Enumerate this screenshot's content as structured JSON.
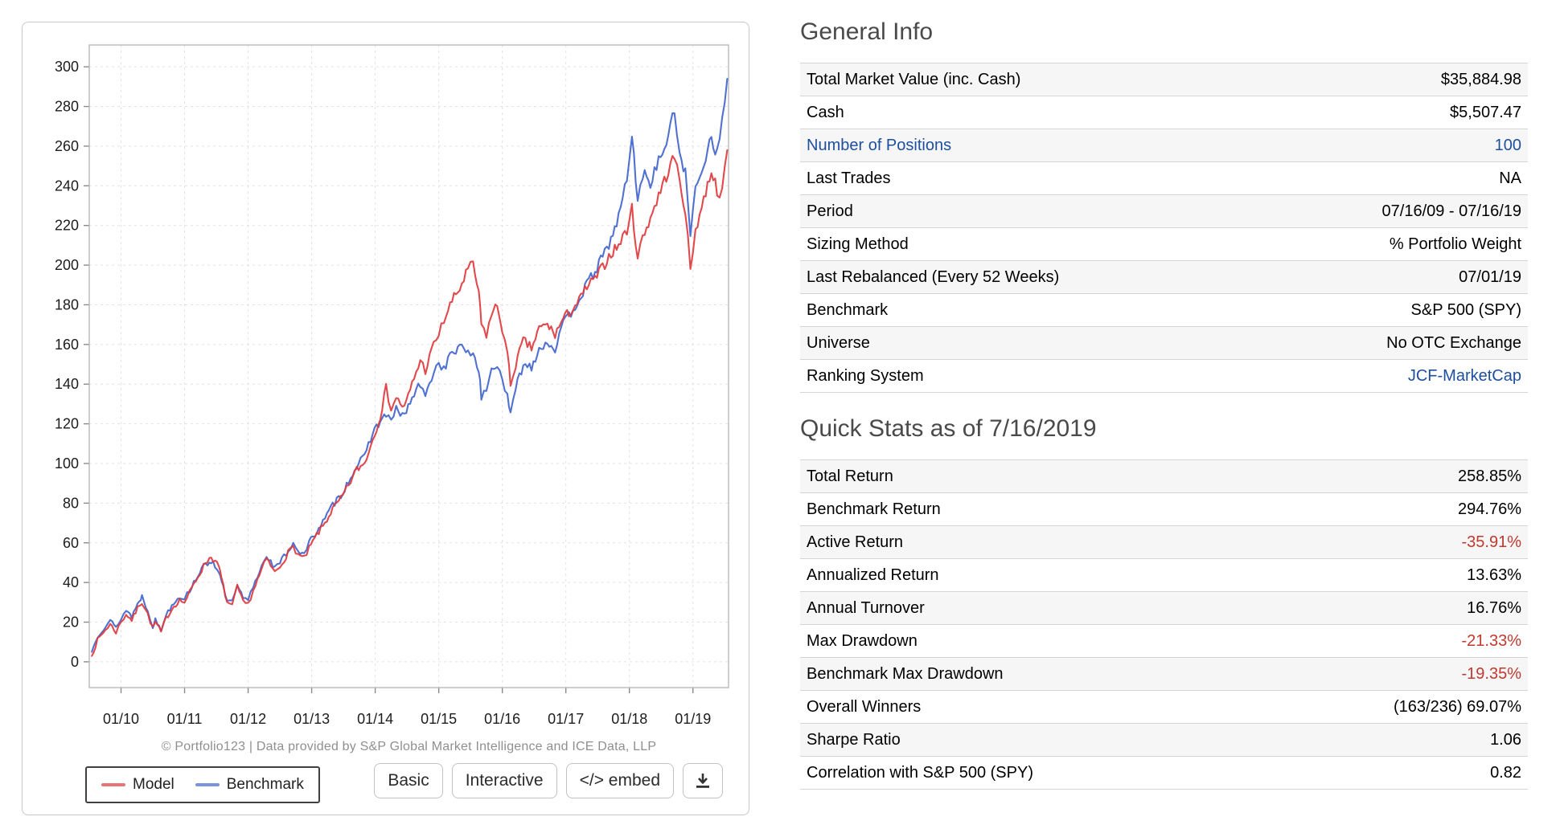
{
  "chart": {
    "footer": "© Portfolio123 | Data provided by S&P Global Market Intelligence and ICE Data, LLP",
    "legend": [
      {
        "label": "Model",
        "color": "#e0393d"
      },
      {
        "label": "Benchmark",
        "color": "#4165cd"
      }
    ],
    "buttons": [
      "Basic",
      "Interactive",
      "</> embed"
    ],
    "download_icon": "download-icon"
  },
  "chart_data": {
    "type": "line",
    "title": "",
    "xlabel": "",
    "ylabel": "",
    "grid": true,
    "legend_position": "bottom-left",
    "ylim": [
      -13,
      311
    ],
    "yticks": [
      0,
      20,
      40,
      60,
      80,
      100,
      120,
      140,
      160,
      180,
      200,
      220,
      240,
      260,
      280,
      300
    ],
    "xtick_labels": [
      "01/10",
      "01/11",
      "01/12",
      "01/13",
      "01/14",
      "01/15",
      "01/16",
      "01/17",
      "01/18",
      "01/19"
    ],
    "x": [
      2009.54,
      2009.63,
      2009.75,
      2009.83,
      2009.92,
      2010.0,
      2010.08,
      2010.17,
      2010.29,
      2010.33,
      2010.42,
      2010.5,
      2010.54,
      2010.63,
      2010.71,
      2010.83,
      2010.92,
      2011.0,
      2011.08,
      2011.21,
      2011.33,
      2011.42,
      2011.54,
      2011.58,
      2011.67,
      2011.75,
      2011.83,
      2011.92,
      2012.0,
      2012.08,
      2012.21,
      2012.29,
      2012.42,
      2012.5,
      2012.63,
      2012.71,
      2012.79,
      2012.88,
      2012.96,
      2013.08,
      2013.21,
      2013.33,
      2013.46,
      2013.58,
      2013.71,
      2013.83,
      2013.96,
      2014.08,
      2014.17,
      2014.25,
      2014.33,
      2014.46,
      2014.58,
      2014.71,
      2014.79,
      2014.92,
      2015.0,
      2015.08,
      2015.21,
      2015.33,
      2015.46,
      2015.54,
      2015.63,
      2015.67,
      2015.75,
      2015.83,
      2015.92,
      2016.0,
      2016.08,
      2016.13,
      2016.21,
      2016.33,
      2016.46,
      2016.58,
      2016.71,
      2016.83,
      2016.96,
      2017.08,
      2017.21,
      2017.33,
      2017.46,
      2017.58,
      2017.71,
      2017.83,
      2017.96,
      2018.04,
      2018.13,
      2018.21,
      2018.33,
      2018.46,
      2018.58,
      2018.71,
      2018.79,
      2018.88,
      2018.96,
      2019.04,
      2019.17,
      2019.29,
      2019.38,
      2019.46,
      2019.54
    ],
    "series": [
      {
        "name": "Model",
        "color": "#e0393d",
        "values": [
          3,
          11,
          16,
          19,
          15,
          20,
          24,
          21,
          29,
          30,
          24,
          17,
          20,
          15,
          22,
          28,
          31,
          30,
          35,
          43,
          50,
          53,
          48,
          42,
          30,
          28,
          38,
          30,
          29,
          36,
          46,
          52,
          45,
          48,
          55,
          58,
          54,
          52,
          57,
          64,
          70,
          77,
          82,
          89,
          97,
          100,
          112,
          124,
          138,
          128,
          133,
          128,
          140,
          152,
          147,
          160,
          165,
          172,
          182,
          188,
          198,
          200,
          186,
          170,
          165,
          175,
          180,
          168,
          155,
          140,
          150,
          162,
          158,
          168,
          170,
          165,
          173,
          177,
          182,
          189,
          193,
          199,
          206,
          210,
          218,
          228,
          204,
          214,
          224,
          235,
          245,
          255,
          242,
          228,
          197,
          218,
          233,
          248,
          238,
          236,
          258
        ]
      },
      {
        "name": "Benchmark",
        "color": "#4165cd",
        "values": [
          5,
          13,
          18,
          21,
          17,
          22,
          26,
          23,
          31,
          33,
          26,
          18,
          21,
          16,
          24,
          30,
          33,
          32,
          36,
          44,
          49,
          51,
          46,
          40,
          31,
          30,
          38,
          32,
          31,
          38,
          48,
          54,
          47,
          50,
          56,
          60,
          56,
          54,
          60,
          66,
          72,
          79,
          84,
          91,
          99,
          103,
          116,
          121,
          125,
          121,
          127,
          124,
          133,
          140,
          133,
          147,
          150,
          148,
          156,
          158,
          157,
          155,
          148,
          132,
          138,
          147,
          150,
          143,
          133,
          124,
          138,
          150,
          149,
          158,
          161,
          158,
          170,
          176,
          183,
          190,
          197,
          204,
          213,
          224,
          244,
          264,
          234,
          246,
          242,
          252,
          262,
          277,
          258,
          246,
          215,
          238,
          252,
          265,
          256,
          272,
          294
        ]
      }
    ]
  },
  "general_info": {
    "title": "General Info",
    "rows": [
      {
        "label": "Total Market Value (inc. Cash)",
        "value": "$35,884.98"
      },
      {
        "label": "Cash",
        "value": "$5,507.47"
      },
      {
        "label": "Number of Positions",
        "value": "100",
        "label_link": true,
        "value_link": true
      },
      {
        "label": "Last Trades",
        "value": "NA"
      },
      {
        "label": "Period",
        "value": "07/16/09 - 07/16/19"
      },
      {
        "label": "Sizing Method",
        "value": "% Portfolio Weight"
      },
      {
        "label": "Last Rebalanced (Every 52 Weeks)",
        "value": "07/01/19"
      },
      {
        "label": "Benchmark",
        "value": "S&P 500 (SPY)"
      },
      {
        "label": "Universe",
        "value": "No OTC Exchange"
      },
      {
        "label": "Ranking System",
        "value": "JCF-MarketCap",
        "value_link": true
      }
    ]
  },
  "quick_stats": {
    "title": "Quick Stats as of 7/16/2019",
    "rows": [
      {
        "label": "Total Return",
        "value": "258.85%"
      },
      {
        "label": "Benchmark Return",
        "value": "294.76%"
      },
      {
        "label": "Active Return",
        "value": "-35.91%",
        "negative": true
      },
      {
        "label": "Annualized Return",
        "value": "13.63%"
      },
      {
        "label": "Annual Turnover",
        "value": "16.76%"
      },
      {
        "label": "Max Drawdown",
        "value": "-21.33%",
        "negative": true
      },
      {
        "label": "Benchmark Max Drawdown",
        "value": "-19.35%",
        "negative": true
      },
      {
        "label": "Overall Winners",
        "value": "(163/236) 69.07%"
      },
      {
        "label": "Sharpe Ratio",
        "value": "1.06"
      },
      {
        "label": "Correlation with S&P 500 (SPY)",
        "value": "0.82"
      }
    ]
  },
  "colors": {
    "link": "#1d4f9e",
    "negative": "#c0392f",
    "grid": "#e2e2e2",
    "plot_border": "#b8b8b8"
  }
}
